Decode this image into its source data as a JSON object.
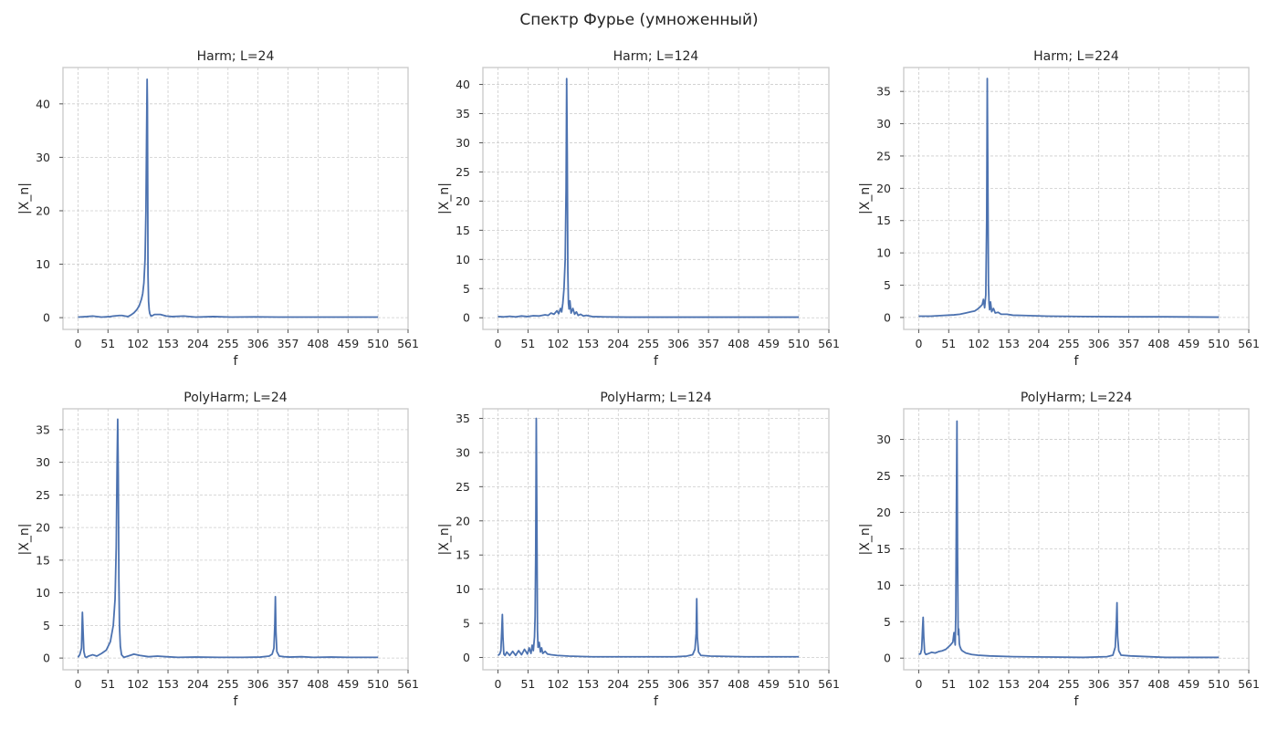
{
  "figure": {
    "title": "Спектр Фурье (умноженный)"
  },
  "colors": {
    "line": "#4c72b0",
    "grid": "#cccccc",
    "frame": "#cccccc"
  },
  "chart_data": [
    {
      "type": "line",
      "title": "Harm; L=24",
      "xlabel": "f",
      "ylabel": "|X_n|",
      "xlim": [
        -25.5,
        561
      ],
      "ylim": [
        -2.2,
        46.8
      ],
      "xticks": [
        0,
        51,
        102,
        153,
        204,
        255,
        306,
        357,
        408,
        459,
        510,
        561
      ],
      "yticks": [
        0,
        10,
        20,
        30,
        40
      ],
      "grid": true,
      "series": [
        {
          "x": [
            0,
            15,
            25,
            40,
            55,
            60,
            70,
            75,
            80,
            85,
            90,
            95,
            100,
            104,
            108,
            110,
            112,
            114,
            115.5,
            116.5,
            117.5,
            118,
            118.5,
            119,
            120,
            121,
            122,
            124,
            127,
            130,
            140,
            150,
            160,
            180,
            200,
            230,
            260,
            300,
            340,
            400,
            460,
            510
          ],
          "y": [
            0.1,
            0.2,
            0.3,
            0.1,
            0.2,
            0.3,
            0.4,
            0.4,
            0.3,
            0.2,
            0.5,
            0.9,
            1.5,
            2.2,
            3.5,
            4.5,
            6.5,
            11,
            20,
            33,
            44.6,
            40,
            25,
            8,
            3,
            1.5,
            0.8,
            0.3,
            0.4,
            0.6,
            0.6,
            0.3,
            0.2,
            0.3,
            0.1,
            0.2,
            0.1,
            0.15,
            0.1,
            0.1,
            0.1,
            0.1
          ]
        }
      ]
    },
    {
      "type": "line",
      "title": "Harm; L=124",
      "xlabel": "f",
      "ylabel": "|X_n|",
      "xlim": [
        -25.5,
        561
      ],
      "ylim": [
        -2.0,
        42.9
      ],
      "xticks": [
        0,
        51,
        102,
        153,
        204,
        255,
        306,
        357,
        408,
        459,
        510,
        561
      ],
      "yticks": [
        0,
        5,
        10,
        15,
        20,
        25,
        30,
        35,
        40
      ],
      "grid": true,
      "series": [
        {
          "x": [
            0,
            10,
            20,
            30,
            40,
            50,
            60,
            70,
            80,
            85,
            90,
            95,
            100,
            103,
            106,
            108,
            110,
            112,
            114,
            115.5,
            116.5,
            117.5,
            118.5,
            119.5,
            120.5,
            122,
            124,
            127,
            130,
            133,
            136,
            140,
            145,
            150,
            160,
            180,
            220,
            280,
            350,
            420,
            510
          ],
          "y": [
            0.2,
            0.15,
            0.25,
            0.15,
            0.3,
            0.2,
            0.35,
            0.3,
            0.5,
            0.4,
            0.8,
            0.6,
            1.2,
            0.7,
            1.6,
            1.0,
            2.5,
            5,
            10,
            22,
            41,
            28,
            8,
            2.5,
            1.5,
            2.9,
            0.8,
            1.6,
            0.6,
            1.0,
            0.4,
            0.6,
            0.3,
            0.4,
            0.2,
            0.15,
            0.1,
            0.1,
            0.1,
            0.1,
            0.1
          ]
        }
      ]
    },
    {
      "type": "line",
      "title": "Harm; L=224",
      "xlabel": "f",
      "ylabel": "|X_n|",
      "xlim": [
        -25.5,
        561
      ],
      "ylim": [
        -1.85,
        38.7
      ],
      "xticks": [
        0,
        51,
        102,
        153,
        204,
        255,
        306,
        357,
        408,
        459,
        510,
        561
      ],
      "yticks": [
        0,
        5,
        10,
        15,
        20,
        25,
        30,
        35
      ],
      "grid": true,
      "series": [
        {
          "x": [
            0,
            20,
            40,
            60,
            70,
            80,
            90,
            95,
            100,
            104,
            108,
            110,
            112,
            114,
            115.5,
            116.5,
            117.5,
            118.5,
            119.5,
            120.5,
            122,
            124,
            127,
            130,
            135,
            140,
            150,
            160,
            180,
            220,
            280,
            350,
            420,
            510
          ],
          "y": [
            0.2,
            0.2,
            0.3,
            0.4,
            0.5,
            0.7,
            0.9,
            1.0,
            1.3,
            1.6,
            2.0,
            2.8,
            1.5,
            3.5,
            15,
            37,
            22,
            5.2,
            2.2,
            1.2,
            2.4,
            0.9,
            1.4,
            0.7,
            0.8,
            0.5,
            0.5,
            0.35,
            0.3,
            0.2,
            0.15,
            0.1,
            0.1,
            0.05
          ]
        }
      ]
    },
    {
      "type": "line",
      "title": "PolyHarm; L=24",
      "xlabel": "f",
      "ylabel": "|X_n|",
      "xlim": [
        -25.5,
        561
      ],
      "ylim": [
        -1.8,
        38.2
      ],
      "xticks": [
        0,
        51,
        102,
        153,
        204,
        255,
        306,
        357,
        408,
        459,
        510,
        561
      ],
      "yticks": [
        0,
        5,
        10,
        15,
        20,
        25,
        30,
        35
      ],
      "grid": true,
      "series": [
        {
          "x": [
            0,
            3,
            6,
            7.5,
            8.5,
            10,
            12,
            14,
            18,
            25,
            32,
            40,
            48,
            55,
            60,
            63,
            65,
            66.5,
            67.5,
            68.5,
            69.5,
            70.5,
            72,
            74,
            78,
            85,
            95,
            105,
            120,
            135,
            150,
            170,
            200,
            240,
            280,
            310,
            325,
            330,
            333,
            334.5,
            335.5,
            336.5,
            338,
            342,
            350,
            360,
            380,
            400,
            430,
            460,
            510
          ],
          "y": [
            0.1,
            0.5,
            1.5,
            7.0,
            4.5,
            1.0,
            0.2,
            0.1,
            0.3,
            0.5,
            0.3,
            0.7,
            1.2,
            2.5,
            5.0,
            9,
            17,
            30,
            36.6,
            28,
            12,
            5,
            1.8,
            0.5,
            0.1,
            0.3,
            0.6,
            0.4,
            0.2,
            0.3,
            0.2,
            0.1,
            0.15,
            0.1,
            0.1,
            0.15,
            0.3,
            0.6,
            1.5,
            5.0,
            9.4,
            4.0,
            1.0,
            0.3,
            0.2,
            0.15,
            0.2,
            0.1,
            0.15,
            0.1,
            0.1
          ]
        }
      ]
    },
    {
      "type": "line",
      "title": "PolyHarm; L=124",
      "xlabel": "f",
      "ylabel": "|X_n|",
      "xlim": [
        -25.5,
        561
      ],
      "ylim": [
        -1.8,
        36.4
      ],
      "xticks": [
        0,
        51,
        102,
        153,
        204,
        255,
        306,
        357,
        408,
        459,
        510,
        561
      ],
      "yticks": [
        0,
        5,
        10,
        15,
        20,
        25,
        30,
        35
      ],
      "grid": true,
      "series": [
        {
          "x": [
            0,
            3,
            5,
            6.5,
            7.5,
            8.5,
            10,
            12,
            15,
            20,
            25,
            30,
            35,
            40,
            45,
            50,
            53,
            56,
            58,
            60,
            62,
            63,
            64,
            65,
            66,
            67,
            68,
            70,
            72,
            74,
            76,
            80,
            84,
            90,
            100,
            120,
            160,
            220,
            300,
            320,
            330,
            334,
            336,
            337,
            338,
            340,
            344,
            360,
            420,
            510
          ],
          "y": [
            0.3,
            0.5,
            1.0,
            4.0,
            6.3,
            3.0,
            0.5,
            0.3,
            0.8,
            0.3,
            0.9,
            0.3,
            1.0,
            0.4,
            1.2,
            0.5,
            1.4,
            0.6,
            1.8,
            1.0,
            3.0,
            6.0,
            15,
            35,
            20,
            4.0,
            1.5,
            2.2,
            0.8,
            1.4,
            0.6,
            0.9,
            0.5,
            0.4,
            0.3,
            0.2,
            0.1,
            0.1,
            0.1,
            0.2,
            0.4,
            1.2,
            3.5,
            8.6,
            3.0,
            0.8,
            0.3,
            0.2,
            0.1,
            0.1
          ]
        }
      ]
    },
    {
      "type": "line",
      "title": "PolyHarm; L=224",
      "xlabel": "f",
      "ylabel": "|X_n|",
      "xlim": [
        -25.5,
        561
      ],
      "ylim": [
        -1.6,
        34.2
      ],
      "xticks": [
        0,
        51,
        102,
        153,
        204,
        255,
        306,
        357,
        408,
        459,
        510,
        561
      ],
      "yticks": [
        0,
        5,
        10,
        15,
        20,
        25,
        30
      ],
      "grid": true,
      "series": [
        {
          "x": [
            0,
            3,
            5,
            6.5,
            7.5,
            8.5,
            10,
            12,
            16,
            22,
            28,
            34,
            40,
            46,
            50,
            54,
            58,
            60,
            62,
            63,
            64,
            65,
            66,
            67,
            68,
            69,
            70,
            72,
            74,
            76,
            80,
            90,
            100,
            120,
            160,
            220,
            280,
            320,
            330,
            334,
            336,
            337,
            338,
            340,
            344,
            360,
            420,
            510
          ],
          "y": [
            0.5,
            0.6,
            1.2,
            4.0,
            5.6,
            3.0,
            0.8,
            0.5,
            0.6,
            0.8,
            0.7,
            0.9,
            1.0,
            1.2,
            1.5,
            1.8,
            2.2,
            3.5,
            1.8,
            6.0,
            20,
            32.5,
            14,
            3.2,
            4.0,
            2.0,
            1.6,
            1.2,
            1.0,
            0.9,
            0.7,
            0.5,
            0.4,
            0.3,
            0.2,
            0.15,
            0.1,
            0.2,
            0.4,
            1.5,
            5.0,
            7.6,
            3.0,
            1.0,
            0.4,
            0.3,
            0.1,
            0.1
          ]
        }
      ]
    }
  ]
}
